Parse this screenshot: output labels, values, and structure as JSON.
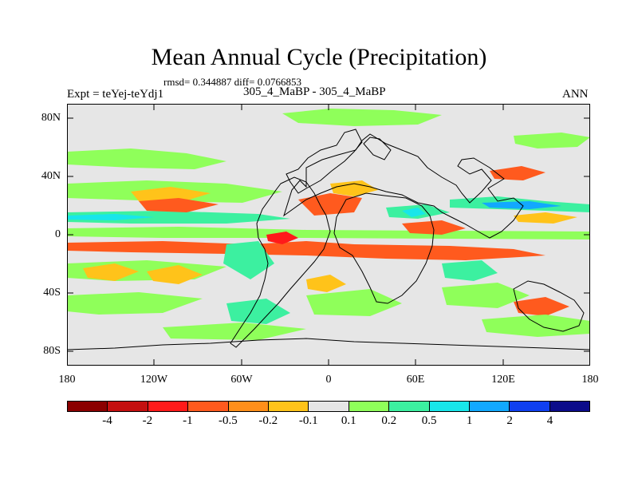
{
  "title": "Mean Annual Cycle (Precipitation)",
  "stats": "rmsd= 0.344887 diff= 0.0766853",
  "experiment": "Expt = teYej-teYdj1",
  "difference": "305_4_MaBP - 305_4_MaBP",
  "season": "ANN",
  "lat_ticks": [
    "80N",
    "40N",
    "0",
    "40S",
    "80S"
  ],
  "lon_ticks": [
    "180",
    "120W",
    "60W",
    "0",
    "60E",
    "120E",
    "180"
  ],
  "colorbar": {
    "labels": [
      "-4",
      "-2",
      "-1",
      "-0.5",
      "-0.2",
      "-0.1",
      "0.1",
      "0.2",
      "0.5",
      "1",
      "2",
      "4"
    ],
    "colors": [
      "#8b0000",
      "#c41010",
      "#ff1a1a",
      "#ff5a1e",
      "#ff8f1a",
      "#ffc31a",
      "#e6e6e6",
      "#8fff5a",
      "#3cf0a0",
      "#18e6ea",
      "#12a8ff",
      "#1040f0",
      "#0c0c8a"
    ]
  },
  "map_colors": {
    "background": "#e6e6e6",
    "strong_negative": "#ff1a1a",
    "negative": "#ff5a1e",
    "weak_negative": "#ffc31a",
    "weak_positive": "#8fff5a",
    "positive": "#3cf0a0",
    "strong_positive": "#18e6ea",
    "very_strong_positive": "#12a8ff",
    "extreme_positive": "#1040f0"
  }
}
